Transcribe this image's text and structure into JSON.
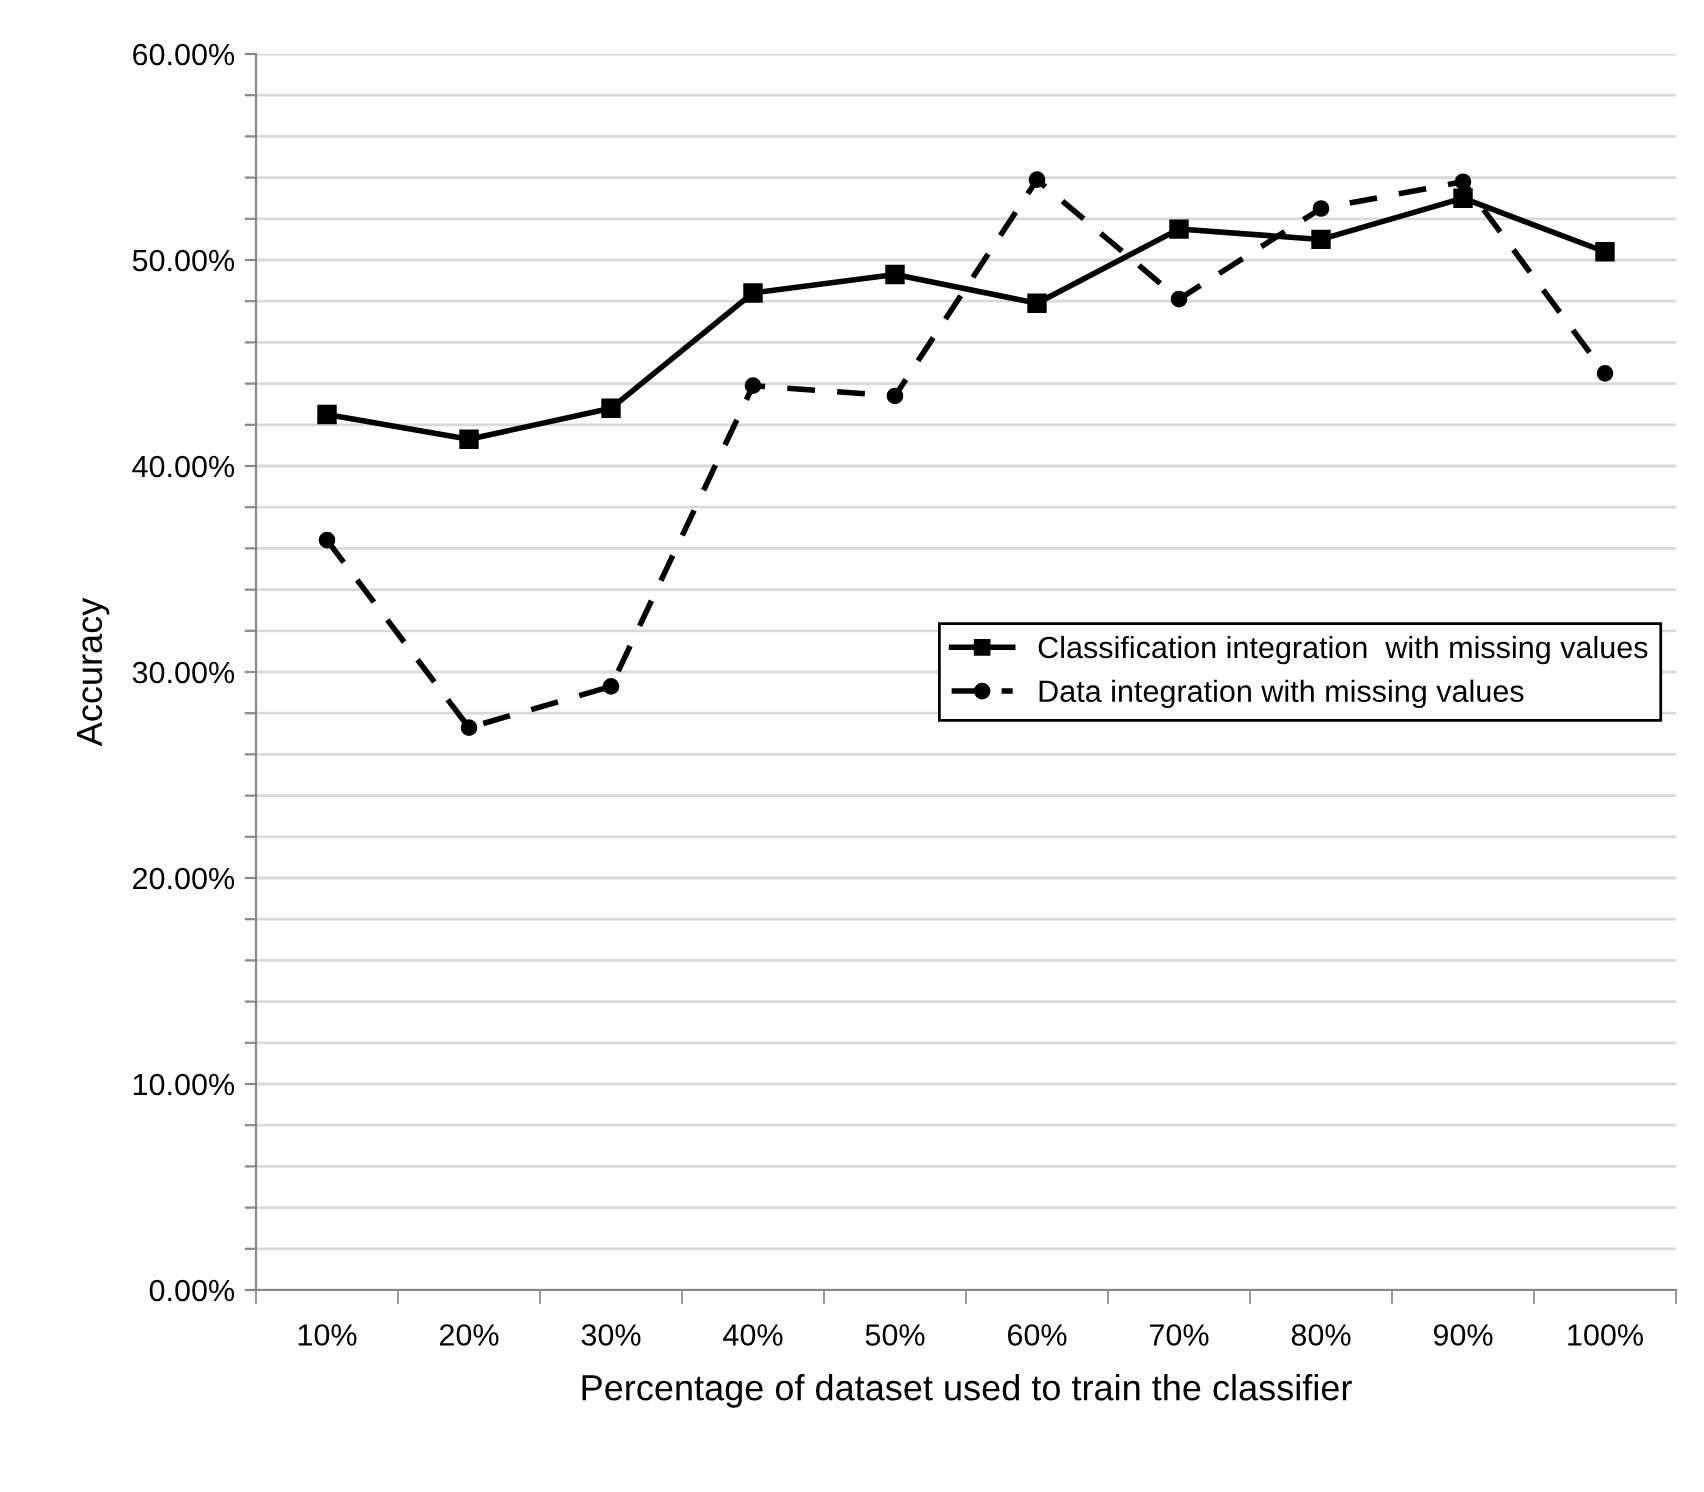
{
  "chart_data": {
    "type": "line",
    "xlabel": "Percentage of dataset used to train the classifier",
    "ylabel": "Accuracy",
    "categories": [
      "10%",
      "20%",
      "30%",
      "40%",
      "50%",
      "60%",
      "70%",
      "80%",
      "90%",
      "100%"
    ],
    "series": [
      {
        "name": "Classification integration  with missing values",
        "color": "#000000",
        "marker": "square",
        "line_style": "solid",
        "values": [
          42.5,
          41.3,
          42.8,
          48.4,
          49.3,
          47.9,
          51.5,
          51.0,
          53.0,
          50.4
        ]
      },
      {
        "name": "Data integration with missing values",
        "color": "#000000",
        "marker": "circle",
        "line_style": "dashed",
        "values": [
          36.4,
          27.3,
          29.3,
          43.9,
          43.4,
          53.9,
          48.1,
          52.5,
          53.8,
          44.5
        ]
      }
    ],
    "ylim": [
      0,
      60
    ],
    "yticks": [
      {
        "value": 0,
        "label": "0.00%"
      },
      {
        "value": 2,
        "label": null
      },
      {
        "value": 4,
        "label": null
      },
      {
        "value": 6,
        "label": null
      },
      {
        "value": 8,
        "label": null
      },
      {
        "value": 10,
        "label": "10.00%"
      },
      {
        "value": 12,
        "label": null
      },
      {
        "value": 14,
        "label": null
      },
      {
        "value": 16,
        "label": null
      },
      {
        "value": 18,
        "label": null
      },
      {
        "value": 20,
        "label": "20.00%"
      },
      {
        "value": 22,
        "label": null
      },
      {
        "value": 24,
        "label": null
      },
      {
        "value": 26,
        "label": null
      },
      {
        "value": 28,
        "label": null
      },
      {
        "value": 30,
        "label": "30.00%"
      },
      {
        "value": 32,
        "label": null
      },
      {
        "value": 34,
        "label": null
      },
      {
        "value": 36,
        "label": null
      },
      {
        "value": 38,
        "label": null
      },
      {
        "value": 40,
        "label": "40.00%"
      },
      {
        "value": 42,
        "label": null
      },
      {
        "value": 44,
        "label": null
      },
      {
        "value": 46,
        "label": null
      },
      {
        "value": 48,
        "label": null
      },
      {
        "value": 50,
        "label": "50.00%"
      },
      {
        "value": 52,
        "label": null
      },
      {
        "value": 54,
        "label": null
      },
      {
        "value": 56,
        "label": null
      },
      {
        "value": 58,
        "label": null
      },
      {
        "value": 60,
        "label": "60.00%"
      }
    ],
    "grid": "y",
    "legend": "center right"
  }
}
